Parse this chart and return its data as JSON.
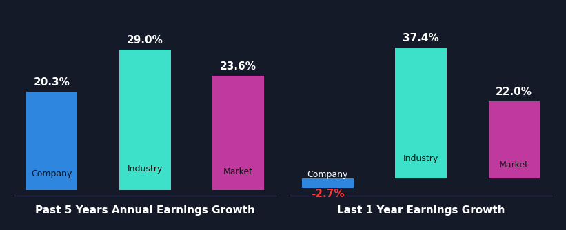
{
  "background_color": "#151a28",
  "label_color": "#ffffff",
  "title_color": "#ffffff",
  "title_fontsize": 11,
  "category_label_fontsize": 9,
  "value_label_fontsize": 11,
  "axis_line_color": "#555577",
  "chart1": {
    "title": "Past 5 Years Annual Earnings Growth",
    "categories": [
      "Company",
      "Industry",
      "Market"
    ],
    "values": [
      20.3,
      29.0,
      23.6
    ],
    "colors": [
      "#2e86de",
      "#3de0c8",
      "#c0399e"
    ],
    "value_labels": [
      "20.3%",
      "29.0%",
      "23.6%"
    ],
    "value_color_negative": "#ff4444"
  },
  "chart2": {
    "title": "Last 1 Year Earnings Growth",
    "categories": [
      "Company",
      "Industry",
      "Market"
    ],
    "values": [
      -2.7,
      37.4,
      22.0
    ],
    "colors": [
      "#2e86de",
      "#3de0c8",
      "#c0399e"
    ],
    "value_labels": [
      "-2.7%",
      "37.4%",
      "22.0%"
    ],
    "value_color_negative": "#ff3333"
  }
}
